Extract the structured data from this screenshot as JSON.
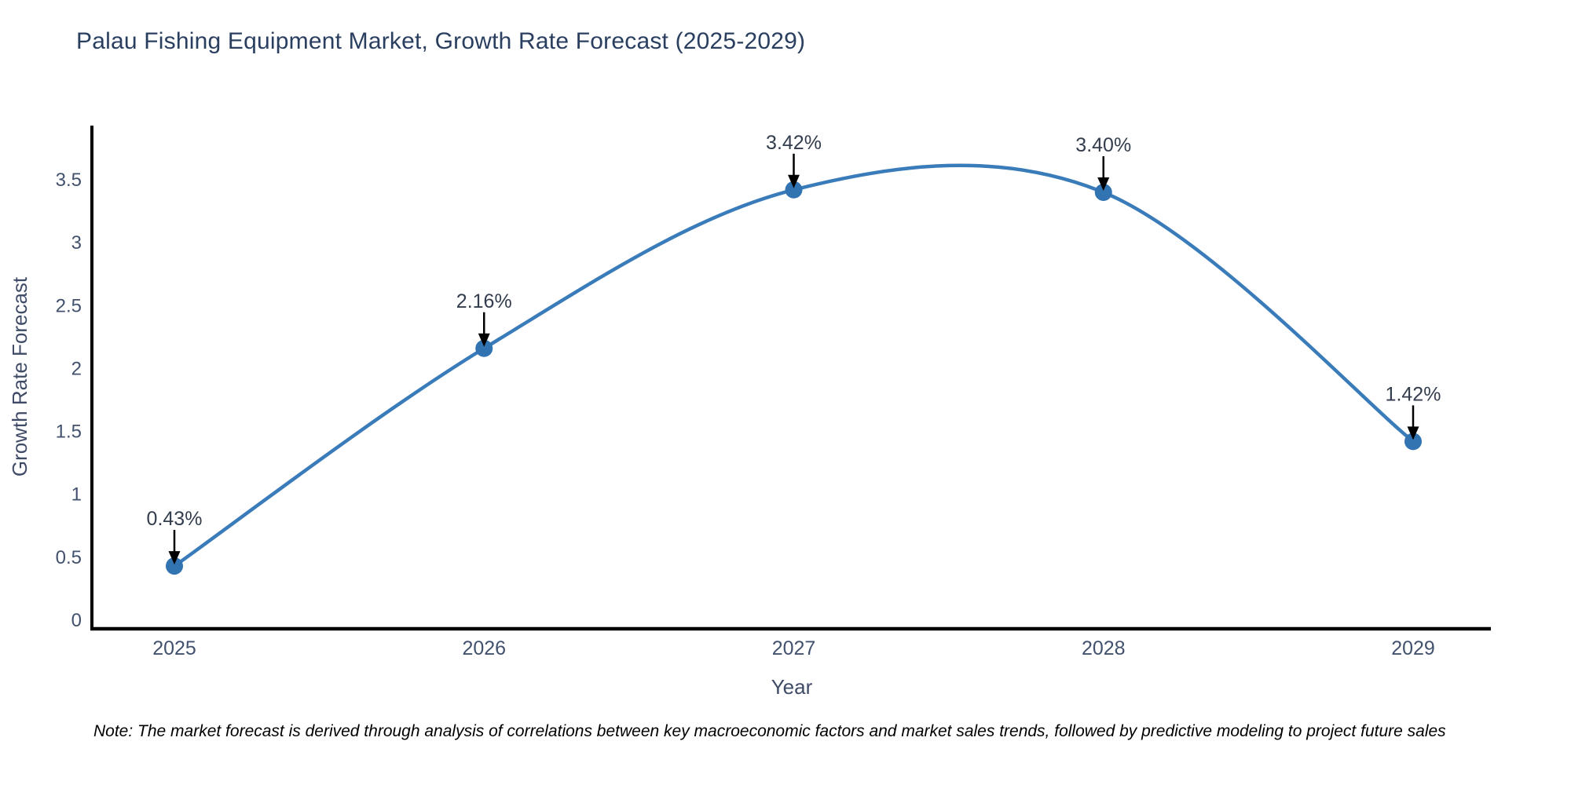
{
  "title": "Palau Fishing Equipment Market, Growth Rate Forecast (2025-2029)",
  "note": "Note: The market forecast is derived through analysis of correlations between key macroeconomic factors and market sales trends, followed by predictive modeling to project future sales",
  "chart_data": {
    "type": "line",
    "title": "Palau Fishing Equipment Market, Growth Rate Forecast (2025-2029)",
    "xlabel": "Year",
    "ylabel": "Growth Rate Forecast",
    "categories": [
      "2025",
      "2026",
      "2027",
      "2028",
      "2029"
    ],
    "series": [
      {
        "name": "Growth Rate Forecast",
        "values": [
          0.43,
          2.16,
          3.42,
          3.4,
          1.42
        ]
      }
    ],
    "point_labels": [
      "0.43%",
      "2.16%",
      "3.42%",
      "3.40%",
      "1.42%"
    ],
    "y_ticks": [
      "0",
      "0.5",
      "1",
      "1.5",
      "2",
      "2.5",
      "3",
      "3.5"
    ],
    "ylim": [
      -0.07,
      4.0
    ],
    "grid": false,
    "legend": "none",
    "line_shape": "spline",
    "colors": {
      "line": "#3a7cba",
      "marker": "#3273b1",
      "arrow": "#000000",
      "axis": "#000000",
      "title_text": "#2a3f5f",
      "tick_text": "#42516d",
      "axis_title_text": "#3f4b66",
      "annotation_text": "#333d4d",
      "note_text": "#000000",
      "background": "#ffffff"
    }
  }
}
